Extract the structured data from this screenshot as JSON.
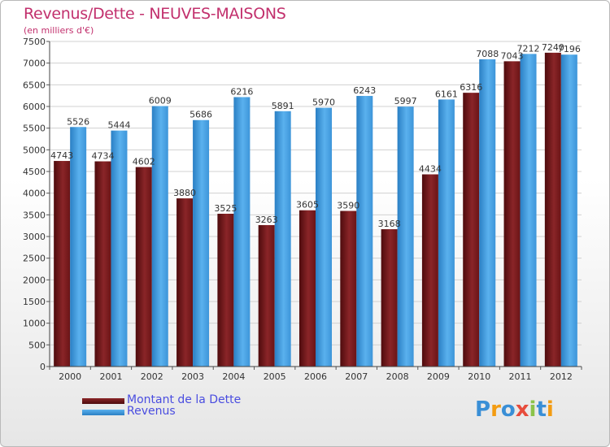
{
  "header": {
    "title": "Revenus/Dette - NEUVES-MAISONS",
    "subtitle": "(en milliers d'€)"
  },
  "colors": {
    "title": "#c2306d",
    "debt": "#7a1a1c",
    "revenue": "#4aa3e6",
    "legend_text": "#4a4de0",
    "grid": "#d0d0d0"
  },
  "legend": {
    "debt_label": "Montant de la Dette",
    "revenue_label": "Revenus"
  },
  "logo": {
    "text": "Proxiti"
  },
  "chart_data": {
    "type": "bar",
    "title": "Revenus/Dette - NEUVES-MAISONS",
    "ylabel": "(en milliers d'€)",
    "xlabel": "",
    "categories": [
      "2000",
      "2001",
      "2002",
      "2003",
      "2004",
      "2005",
      "2006",
      "2007",
      "2008",
      "2009",
      "2010",
      "2011",
      "2012"
    ],
    "series": [
      {
        "name": "Montant de la Dette",
        "values": [
          4743,
          4734,
          4602,
          3880,
          3525,
          3263,
          3605,
          3590,
          3168,
          4434,
          6316,
          7043,
          7240
        ]
      },
      {
        "name": "Revenus",
        "values": [
          5526,
          5444,
          6009,
          5686,
          6216,
          5891,
          5970,
          6243,
          5997,
          6161,
          7088,
          7212,
          7196
        ]
      }
    ],
    "ylim": [
      0,
      7500
    ],
    "yticks": [
      0,
      500,
      1000,
      1500,
      2000,
      2500,
      3000,
      3500,
      4000,
      4500,
      5000,
      5500,
      6000,
      6500,
      7000,
      7500
    ],
    "grid": true,
    "legend_position": "bottom-left"
  }
}
